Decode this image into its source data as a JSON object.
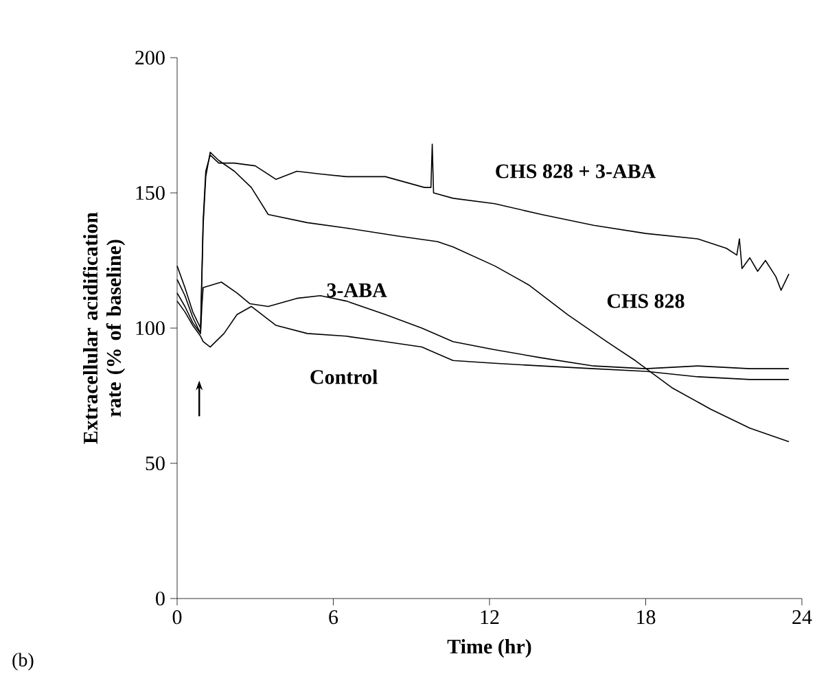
{
  "chart_data": {
    "type": "line",
    "xlabel": "Time (hr)",
    "ylabel": "Extracellular acidification rate (% of baseline)",
    "xlim": [
      0,
      24
    ],
    "ylim": [
      0,
      200
    ],
    "xticks": [
      0,
      6,
      12,
      18,
      24
    ],
    "yticks": [
      0,
      50,
      100,
      150,
      200
    ],
    "grid": false,
    "marker": "none",
    "line_style": "solid",
    "annotations": [
      "(b)"
    ],
    "series": [
      {
        "name": "CHS 828 + 3-ABA",
        "color": "#000000",
        "x": [
          0,
          0.3,
          0.6,
          0.9,
          1.0,
          1.1,
          1.27,
          1.6,
          2.2,
          3.0,
          3.8,
          4.6,
          5.5,
          6.5,
          8.0,
          9.5,
          9.75,
          9.8,
          9.85,
          10.6,
          12.2,
          14,
          16,
          18,
          20,
          21.1,
          21.5,
          21.6,
          21.7,
          22,
          22.3,
          22.6,
          23,
          23.2,
          23.5
        ],
        "values": [
          123,
          115,
          106,
          100,
          140,
          158,
          164,
          161,
          161,
          160,
          155,
          158,
          157,
          156,
          156,
          152,
          152,
          168,
          150,
          148,
          146,
          142,
          138,
          135,
          133,
          129.5,
          127,
          133,
          122,
          126,
          121,
          125,
          119,
          114,
          120
        ]
      },
      {
        "name": "CHS 828",
        "color": "#000000",
        "x": [
          0,
          0.3,
          0.6,
          0.9,
          1.0,
          1.1,
          1.27,
          1.6,
          2.2,
          2.85,
          3.5,
          5.0,
          6.5,
          8.5,
          10.0,
          10.6,
          12.2,
          13.5,
          15,
          16.5,
          17.6,
          19,
          20.5,
          22,
          23.5
        ],
        "values": [
          118,
          112,
          104,
          98,
          138,
          156,
          165,
          162,
          158,
          152,
          142,
          139,
          137,
          134,
          132,
          130,
          123,
          116,
          105,
          95,
          88,
          78,
          70,
          63,
          58
        ]
      },
      {
        "name": "3-ABA",
        "color": "#000000",
        "x": [
          0,
          0.3,
          0.6,
          0.9,
          0.95,
          1.0,
          1.7,
          2.3,
          2.8,
          3.5,
          4.6,
          5.5,
          6.5,
          8.0,
          9.4,
          10.6,
          12.2,
          14,
          16,
          18,
          20,
          22,
          23.5
        ],
        "values": [
          113,
          108,
          102,
          98,
          108,
          115,
          117,
          113,
          109,
          108,
          111,
          112,
          110,
          105,
          100,
          95,
          92,
          89,
          86,
          85,
          86,
          85,
          85
        ]
      },
      {
        "name": "Control",
        "color": "#000000",
        "x": [
          0,
          0.3,
          0.6,
          0.9,
          1.0,
          1.27,
          1.8,
          2.3,
          2.85,
          3.8,
          5.0,
          6.5,
          8.0,
          9.4,
          10.6,
          12.2,
          14,
          16,
          18,
          20,
          22,
          23.5
        ],
        "values": [
          110,
          106,
          101,
          97,
          95,
          93,
          98,
          105,
          108,
          101,
          98,
          97,
          95,
          93,
          88,
          87,
          86,
          85,
          84,
          82,
          81,
          81
        ]
      }
    ]
  }
}
